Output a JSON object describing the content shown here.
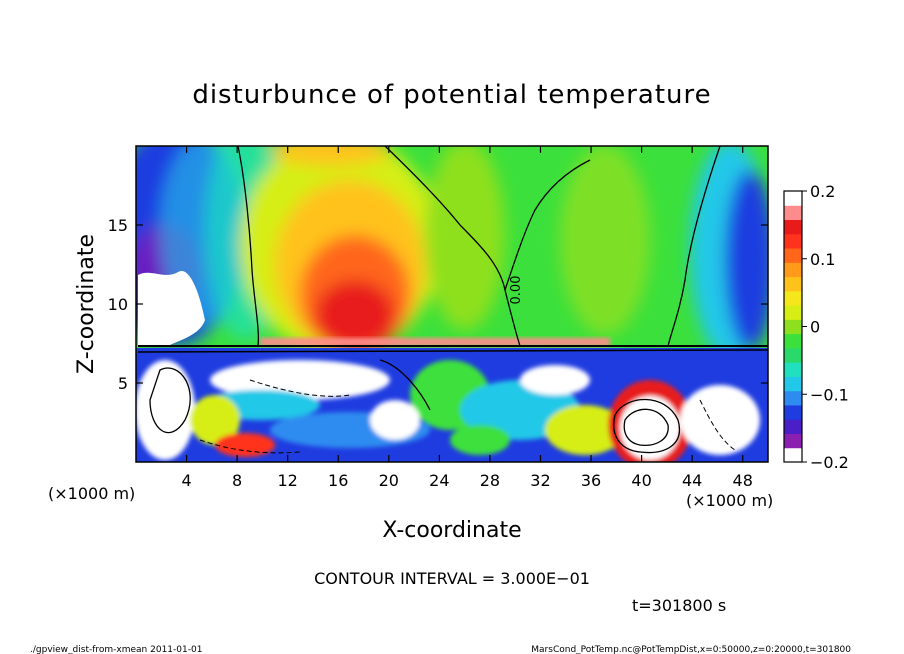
{
  "chart_data": {
    "type": "heatmap",
    "title": "disturbunce of potential temperature",
    "xlabel": "X-coordinate",
    "ylabel": "Z-coordinate",
    "x_unit_left": "(×1000 m)",
    "x_unit_right": "(×1000 m)",
    "xlim": [
      0,
      50
    ],
    "ylim": [
      0,
      20
    ],
    "xticks": [
      4,
      8,
      12,
      16,
      20,
      24,
      28,
      32,
      36,
      40,
      44,
      48
    ],
    "yticks": [
      5,
      10,
      15
    ],
    "colorbar": {
      "range": [
        -0.2,
        0.2
      ],
      "ticks": [
        "0.2",
        "0.1",
        "0",
        "−0.1",
        "−0.2"
      ],
      "colors": [
        "#ffffff",
        "#8a1fb0",
        "#4b1fc8",
        "#1f3ce0",
        "#2e8cf0",
        "#22c8e8",
        "#20e0c0",
        "#29d96a",
        "#3ce03c",
        "#8ee01e",
        "#d6ee14",
        "#f4e81c",
        "#ffc21a",
        "#ff9a1a",
        "#ff661a",
        "#ff321e",
        "#e81a1a",
        "#ff8c8c",
        "#ffffff"
      ]
    },
    "contour_label": "0.00",
    "contour_interval_text": "CONTOUR INTERVAL = 3.000E−01",
    "time_text": "t=301800 s",
    "footer_left": "./gpview_dist-from-xmean  2011-01-01",
    "footer_right": "MarsCond_PotTemp.nc@PotTempDist,x=0:50000,z=0:20000,t=301800"
  }
}
